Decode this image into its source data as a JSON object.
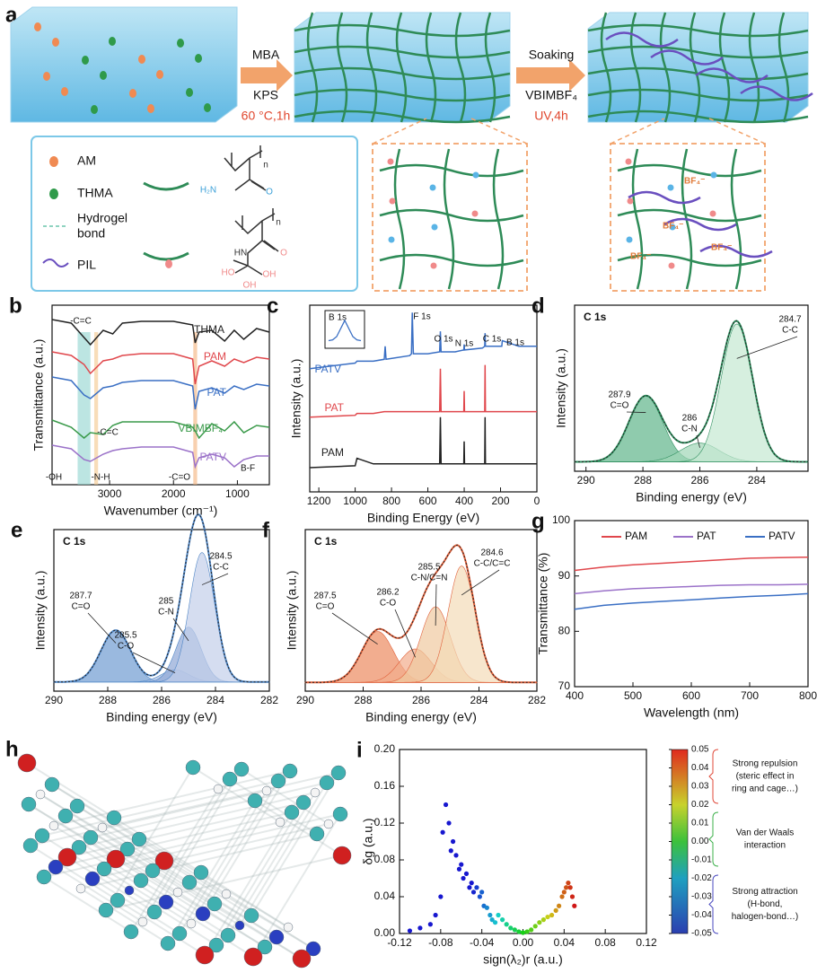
{
  "schematic": {
    "label": "a",
    "step1": {
      "top": "MBA",
      "bottom": "KPS",
      "condition": "60 °C,1h"
    },
    "step2": {
      "top": "Soaking",
      "bottom": "VBIMBF₄",
      "condition": "UV,4h"
    },
    "legend": [
      [
        "AM"
      ],
      [
        "THMA"
      ],
      [
        "Hydrogel",
        "bond"
      ],
      [
        "PIL"
      ]
    ],
    "am_structure": [
      "H₂N",
      "O",
      "n"
    ],
    "thma_structure": [
      "HN",
      "O",
      "HO",
      "OH",
      "OH",
      "n"
    ],
    "anion_labels": [
      "BF₄⁻",
      "BF₄⁻",
      "BF₄⁻",
      "BF₄⁻"
    ]
  },
  "molecule": {
    "label": "h"
  },
  "chart_data": [
    {
      "type": "line",
      "label": "b",
      "x_label": "Wavenumber (cm⁻¹)",
      "y_label": "Transmittance (a.u.)",
      "xlim": [
        3900,
        500
      ],
      "ylim": [
        0,
        10
      ],
      "xticks": [
        3000,
        2000,
        1000
      ],
      "x": [
        3900,
        3600,
        3400,
        3300,
        3100,
        2950,
        2800,
        2500,
        2000,
        1700,
        1660,
        1600,
        1400,
        1200,
        1050,
        900,
        700,
        500
      ],
      "series": [
        {
          "name": "THMA",
          "color": "#222222",
          "values": [
            9.2,
            9.0,
            8.2,
            7.8,
            8.6,
            8.4,
            9.0,
            9.1,
            9.1,
            8.9,
            7.9,
            8.5,
            8.6,
            8.0,
            8.6,
            8.1,
            8.7,
            8.5
          ]
        },
        {
          "name": "PAM",
          "color": "#e0474c",
          "values": [
            7.4,
            7.2,
            6.7,
            6.2,
            6.9,
            7.0,
            7.2,
            7.3,
            7.3,
            7.0,
            5.6,
            6.6,
            6.9,
            6.6,
            7.0,
            6.8,
            7.1,
            7.0
          ]
        },
        {
          "name": "PAT",
          "color": "#3a6fc4",
          "values": [
            6.0,
            5.8,
            5.0,
            4.8,
            5.4,
            5.5,
            5.7,
            5.8,
            5.8,
            5.5,
            4.2,
            5.2,
            5.4,
            5.1,
            5.5,
            5.3,
            5.6,
            5.5
          ]
        },
        {
          "name": "VBIMBF₄",
          "color": "#3a9a4a",
          "values": [
            3.6,
            3.2,
            2.6,
            2.9,
            2.8,
            3.3,
            3.5,
            3.5,
            3.5,
            3.2,
            3.0,
            2.6,
            3.4,
            3.0,
            3.5,
            2.9,
            3.3,
            3.2
          ]
        },
        {
          "name": "PATV",
          "color": "#9b72c9",
          "values": [
            2.2,
            2.0,
            1.4,
            1.3,
            1.7,
            1.9,
            2.0,
            2.1,
            2.1,
            1.8,
            1.0,
            1.5,
            1.7,
            1.5,
            1.0,
            1.4,
            1.6,
            1.6
          ]
        }
      ],
      "bands": [
        {
          "from": 3500,
          "to": 3300,
          "color": "#8fd3cf"
        },
        {
          "from": 3240,
          "to": 3180,
          "color": "#f3c68a"
        },
        {
          "from": 1690,
          "to": 1630,
          "color": "#f3b07a"
        }
      ],
      "annotations": [
        "-C=C",
        "-C=C",
        "-OH",
        "-N-H",
        "-C=O",
        "B-F"
      ]
    },
    {
      "type": "line",
      "label": "c",
      "x_label": "Binding Energy (eV)",
      "y_label": "Intensity (a.u.)",
      "xlim": [
        1250,
        0
      ],
      "ylim": [
        0,
        10
      ],
      "xticks": [
        1200,
        1000,
        800,
        600,
        400,
        200,
        0
      ],
      "x": [
        1250,
        1000,
        990,
        900,
        840,
        835,
        830,
        700,
        690,
        686,
        680,
        600,
        535,
        531,
        527,
        450,
        402,
        400,
        398,
        300,
        287,
        285,
        283,
        200,
        193,
        190,
        100,
        0
      ],
      "series": [
        {
          "name": "PATV",
          "color": "#3a6fc4",
          "values": [
            6.6,
            6.9,
            7.0,
            7.0,
            7.1,
            7.8,
            7.1,
            7.3,
            7.4,
            9.6,
            7.4,
            7.4,
            7.5,
            8.6,
            7.5,
            7.5,
            7.6,
            7.9,
            7.6,
            7.7,
            7.8,
            8.5,
            7.8,
            7.8,
            7.8,
            8.1,
            7.8,
            7.8
          ]
        },
        {
          "name": "PAT",
          "color": "#e0474c",
          "values": [
            4.0,
            4.1,
            4.2,
            4.2,
            4.3,
            4.3,
            4.3,
            4.3,
            4.3,
            4.3,
            4.3,
            4.3,
            4.3,
            6.6,
            4.3,
            4.3,
            4.3,
            5.4,
            4.3,
            4.3,
            4.3,
            6.8,
            4.3,
            4.3,
            4.3,
            4.3,
            4.3,
            4.3
          ]
        },
        {
          "name": "PAM",
          "color": "#222222",
          "values": [
            1.3,
            1.4,
            1.8,
            1.5,
            1.5,
            1.5,
            1.5,
            1.5,
            1.5,
            1.5,
            1.5,
            1.5,
            1.5,
            4.0,
            1.5,
            1.5,
            1.5,
            2.7,
            1.5,
            1.5,
            1.5,
            4.0,
            1.5,
            1.5,
            1.5,
            1.5,
            1.5,
            1.5
          ]
        }
      ],
      "annotations": [
        "F 1s",
        "O 1s",
        "N 1s",
        "C 1s",
        "B 1s"
      ],
      "inset": {
        "label": "B 1s",
        "values": [
          1,
          1.2,
          2,
          4,
          6,
          4,
          2,
          1.2,
          1
        ]
      }
    },
    {
      "type": "peakfit",
      "label": "d",
      "panel_title": "C 1s",
      "x_label": "Binding energy (eV)",
      "y_label": "Intensity (a.u.)",
      "xlim": [
        290.4,
        282.2
      ],
      "ylim": [
        -0.6,
        10
      ],
      "xticks": [
        290,
        288,
        286,
        284
      ],
      "envelope_color": "#2f8f5f",
      "peaks": [
        {
          "center": 287.9,
          "height": 4.2,
          "fwhm": 1.4,
          "label": "C=O",
          "color": "#5fb58a"
        },
        {
          "center": 286.0,
          "height": 1.2,
          "fwhm": 1.6,
          "label": "C-N",
          "color": "#9fd6b6"
        },
        {
          "center": 284.7,
          "height": 8.8,
          "fwhm": 1.3,
          "label": "C-C",
          "color": "#c4e8d2"
        }
      ]
    },
    {
      "type": "peakfit",
      "label": "e",
      "panel_title": "C 1s",
      "x_label": "Binding energy (eV)",
      "y_label": "Intensity (a.u.)",
      "xlim": [
        290,
        282
      ],
      "ylim": [
        -0.6,
        10
      ],
      "xticks": [
        290,
        288,
        286,
        284,
        282
      ],
      "envelope_color": "#4f86c6",
      "peaks": [
        {
          "center": 287.7,
          "height": 3.4,
          "fwhm": 1.3,
          "label": "C=O",
          "color": "#6f9bd1"
        },
        {
          "center": 285.5,
          "height": 0.8,
          "fwhm": 1.2,
          "label": "C-O",
          "color": "#a9bfe3"
        },
        {
          "center": 285.0,
          "height": 3.6,
          "fwhm": 1.1,
          "label": "C-N",
          "color": "#8ea6d6"
        },
        {
          "center": 284.5,
          "height": 8.5,
          "fwhm": 1.1,
          "label": "C-C",
          "color": "#c3cfe9"
        }
      ]
    },
    {
      "type": "peakfit",
      "label": "f",
      "panel_title": "C 1s",
      "x_label": "Binding energy (eV)",
      "y_label": "Intensity (a.u.)",
      "xlim": [
        290,
        282
      ],
      "ylim": [
        -0.6,
        10.5
      ],
      "xticks": [
        290,
        288,
        286,
        284,
        282
      ],
      "envelope_color": "#e0603a",
      "peaks": [
        {
          "center": 287.5,
          "height": 3.5,
          "fwhm": 1.3,
          "label": "C=O",
          "color": "#ec8a60"
        },
        {
          "center": 286.2,
          "height": 2.3,
          "fwhm": 1.3,
          "label": "C-O",
          "color": "#f2ad8c"
        },
        {
          "center": 285.5,
          "height": 5.2,
          "fwhm": 1.2,
          "label": "C-N/C=N",
          "color": "#f0c9a0"
        },
        {
          "center": 284.6,
          "height": 8.0,
          "fwhm": 1.1,
          "label": "C-C/C=C",
          "color": "#f3dcb8"
        }
      ]
    },
    {
      "type": "line",
      "label": "g",
      "x_label": "Wavelength (nm)",
      "y_label": "Transmittance (%)",
      "xlim": [
        400,
        800
      ],
      "ylim": [
        70,
        100
      ],
      "xticks": [
        400,
        500,
        600,
        700,
        800
      ],
      "yticks": [
        70,
        80,
        90,
        100
      ],
      "legend": "top",
      "x": [
        400,
        450,
        500,
        550,
        600,
        650,
        700,
        750,
        800
      ],
      "series": [
        {
          "name": "PAM",
          "color": "#e0474c",
          "values": [
            91.0,
            91.6,
            92.0,
            92.3,
            92.6,
            92.9,
            93.2,
            93.3,
            93.4
          ]
        },
        {
          "name": "PAT",
          "color": "#9b72c9",
          "values": [
            86.8,
            87.3,
            87.7,
            87.9,
            88.1,
            88.3,
            88.4,
            88.4,
            88.5
          ]
        },
        {
          "name": "PATV",
          "color": "#3a6fc4",
          "values": [
            84.0,
            84.7,
            85.1,
            85.4,
            85.7,
            86.0,
            86.3,
            86.5,
            86.8
          ]
        }
      ]
    },
    {
      "type": "scatter",
      "label": "i",
      "x_label": "sign(λ₂)r (a.u.)",
      "y_label": "δg (a.u.)",
      "xlim": [
        -0.12,
        0.12
      ],
      "ylim": [
        0,
        0.2
      ],
      "xticks": [
        -0.12,
        -0.08,
        -0.04,
        {
          "value": 0,
          "label": "0.00"
        },
        0.04,
        0.08,
        0.12
      ],
      "yticks": [
        {
          "value": 0,
          "label": "0.00"
        },
        0.04,
        0.08,
        0.12,
        0.16,
        {
          "value": 0.2,
          "label": "0.20"
        }
      ],
      "x": [
        -0.11,
        -0.1,
        -0.09,
        -0.085,
        -0.08,
        -0.078,
        -0.075,
        -0.072,
        -0.07,
        -0.068,
        -0.065,
        -0.062,
        -0.06,
        -0.058,
        -0.055,
        -0.052,
        -0.05,
        -0.048,
        -0.045,
        -0.042,
        -0.04,
        -0.038,
        -0.035,
        -0.032,
        -0.03,
        -0.027,
        -0.024,
        -0.02,
        -0.016,
        -0.012,
        -0.008,
        -0.004,
        0.0,
        0.004,
        0.008,
        0.012,
        0.016,
        0.02,
        0.024,
        0.028,
        0.032,
        0.035,
        0.038,
        0.04,
        0.042,
        0.044,
        0.046,
        0.048,
        0.05
      ],
      "values": [
        0.003,
        0.006,
        0.01,
        0.02,
        0.04,
        0.11,
        0.14,
        0.12,
        0.09,
        0.1,
        0.085,
        0.07,
        0.075,
        0.06,
        0.065,
        0.05,
        0.055,
        0.045,
        0.05,
        0.04,
        0.045,
        0.03,
        0.028,
        0.02,
        0.015,
        0.012,
        0.02,
        0.015,
        0.01,
        0.006,
        0.004,
        0.002,
        0.001,
        0.002,
        0.004,
        0.008,
        0.012,
        0.015,
        0.018,
        0.02,
        0.025,
        0.03,
        0.04,
        0.045,
        0.05,
        0.055,
        0.05,
        0.04,
        0.03
      ],
      "clim": [
        -0.05,
        0.05
      ],
      "colorbar_ticks": [
        0.05,
        0.04,
        0.03,
        0.02,
        0.01,
        {
          "value": 0,
          "label": "0.00"
        },
        -0.01,
        -0.02,
        -0.03,
        -0.04,
        -0.05
      ],
      "regions": [
        [
          "Strong repulsion",
          "(steric effect in",
          "ring and cage…)"
        ],
        [
          "Van der Waals",
          "interaction"
        ],
        [
          "Strong attraction",
          "(H-bond,",
          "halogen-bond…)"
        ]
      ]
    }
  ]
}
